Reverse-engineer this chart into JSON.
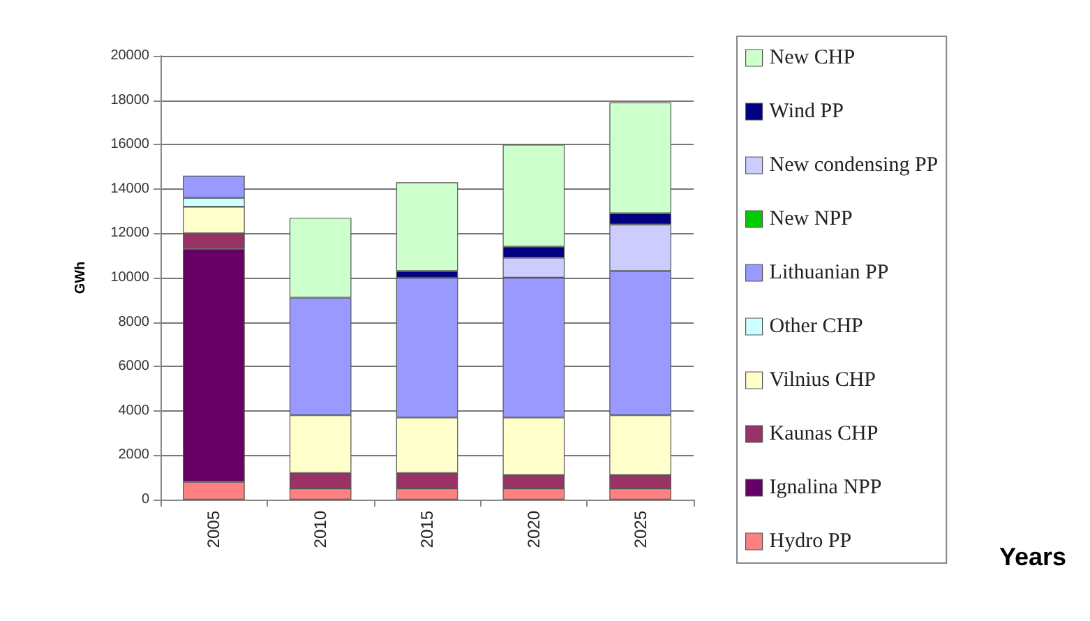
{
  "chart_data": {
    "type": "bar",
    "stacked": true,
    "annotations": [
      "Years"
    ],
    "ylabel": "GWh",
    "categories": [
      "2005",
      "2010",
      "2015",
      "2020",
      "2025"
    ],
    "series": [
      {
        "name": "Hydro PP",
        "color": "#ff8080",
        "values": [
          800,
          500,
          500,
          500,
          500
        ]
      },
      {
        "name": "Ignalina NPP",
        "color": "#660066",
        "values": [
          10500,
          0,
          0,
          0,
          0
        ]
      },
      {
        "name": "Kaunas CHP",
        "color": "#993366",
        "values": [
          700,
          700,
          700,
          600,
          600
        ]
      },
      {
        "name": "Vilnius CHP",
        "color": "#ffffcc",
        "values": [
          1200,
          2600,
          2500,
          2600,
          2700
        ]
      },
      {
        "name": "Other CHP",
        "color": "#ccffff",
        "values": [
          400,
          0,
          0,
          0,
          0
        ]
      },
      {
        "name": "Lithuanian PP",
        "color": "#9999ff",
        "values": [
          1000,
          5300,
          6300,
          6300,
          6500
        ]
      },
      {
        "name": "New NPP",
        "color": "#00cc00",
        "values": [
          0,
          0,
          0,
          0,
          0
        ]
      },
      {
        "name": "New condensing PP",
        "color": "#ccccff",
        "values": [
          0,
          0,
          0,
          900,
          2100
        ]
      },
      {
        "name": "Wind PP",
        "color": "#000080",
        "values": [
          0,
          0,
          300,
          500,
          500
        ]
      },
      {
        "name": "New CHP",
        "color": "#ccffcc",
        "values": [
          0,
          3600,
          4000,
          4600,
          5000
        ]
      }
    ],
    "ylim": [
      0,
      20000
    ],
    "yticks": [
      0,
      2000,
      4000,
      6000,
      8000,
      10000,
      12000,
      14000,
      16000,
      18000,
      20000
    ],
    "grid": "y",
    "legend": "right"
  }
}
